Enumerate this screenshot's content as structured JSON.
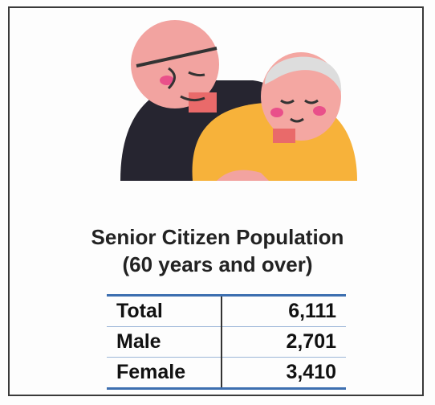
{
  "title": [
    "Senior Citizen Population",
    "(60 years and over)"
  ],
  "table": {
    "rows": [
      [
        "Total",
        "6,111"
      ],
      [
        "Male",
        "2,701"
      ],
      [
        "Female",
        "3,410"
      ]
    ]
  }
}
